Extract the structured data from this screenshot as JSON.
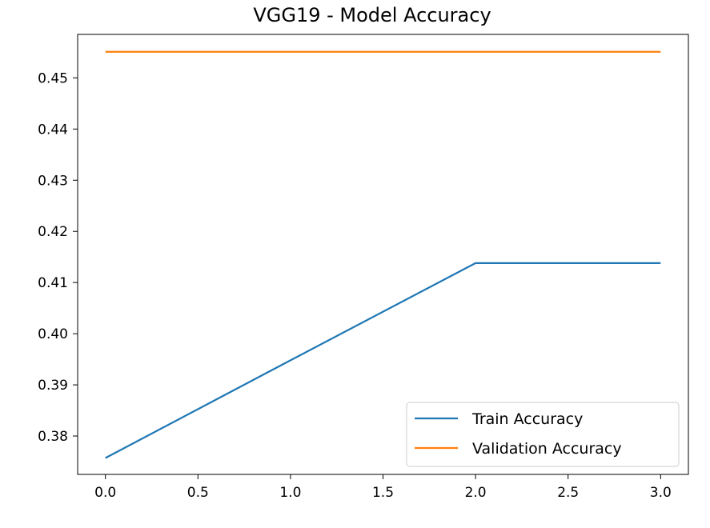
{
  "chart_data": {
    "type": "line",
    "title": "VGG19 - Model Accuracy",
    "xlabel": "",
    "ylabel": "",
    "x": [
      0,
      1,
      2,
      3
    ],
    "xlim": [
      -0.15,
      3.15
    ],
    "ylim": [
      0.3725,
      0.4585
    ],
    "xticks": [
      0.0,
      0.5,
      1.0,
      1.5,
      2.0,
      2.5,
      3.0
    ],
    "xtick_labels": [
      "0.0",
      "0.5",
      "1.0",
      "1.5",
      "2.0",
      "2.5",
      "3.0"
    ],
    "yticks": [
      0.38,
      0.39,
      0.4,
      0.41,
      0.42,
      0.43,
      0.44,
      0.45
    ],
    "ytick_labels": [
      "0.38",
      "0.39",
      "0.40",
      "0.41",
      "0.42",
      "0.43",
      "0.44",
      "0.45"
    ],
    "series": [
      {
        "name": "Train Accuracy",
        "values": [
          0.3757,
          0.3948,
          0.4138,
          0.4138
        ],
        "color": "#1f77b4"
      },
      {
        "name": "Validation Accuracy",
        "values": [
          0.4551,
          0.4551,
          0.4551,
          0.4551
        ],
        "color": "#ff7f0e"
      }
    ],
    "grid": false,
    "legend_position": "lower-right"
  }
}
